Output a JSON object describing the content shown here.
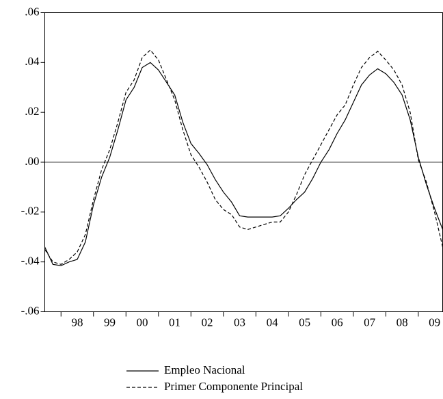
{
  "chart_data": {
    "type": "line",
    "x": [
      1997.5,
      1997.75,
      1998,
      1998.25,
      1998.5,
      1998.75,
      1999,
      1999.25,
      1999.5,
      1999.75,
      2000,
      2000.25,
      2000.5,
      2000.75,
      2001,
      2001.25,
      2001.5,
      2001.75,
      2002,
      2002.25,
      2002.5,
      2002.75,
      2003,
      2003.25,
      2003.5,
      2003.75,
      2004,
      2004.25,
      2004.5,
      2004.75,
      2005,
      2005.25,
      2005.5,
      2005.75,
      2006,
      2006.25,
      2006.5,
      2006.75,
      2007,
      2007.25,
      2007.5,
      2007.75,
      2008,
      2008.25,
      2008.5,
      2008.75,
      2009,
      2009.25,
      2009.5,
      2009.75
    ],
    "series": [
      {
        "name": "Empleo Nacional",
        "color": "#000000",
        "dash": "none",
        "values": [
          -0.034,
          -0.041,
          -0.0415,
          -0.04,
          -0.039,
          -0.032,
          -0.017,
          -0.006,
          0.002,
          0.013,
          0.025,
          0.03,
          0.038,
          0.04,
          0.037,
          0.032,
          0.027,
          0.016,
          0.0075,
          0.0035,
          -0.001,
          -0.007,
          -0.012,
          -0.016,
          -0.0215,
          -0.022,
          -0.022,
          -0.022,
          -0.022,
          -0.0215,
          -0.0185,
          -0.015,
          -0.012,
          -0.0065,
          0.0,
          0.005,
          0.0115,
          0.017,
          0.024,
          0.031,
          0.035,
          0.0375,
          0.0355,
          0.032,
          0.027,
          0.017,
          0.002,
          -0.009,
          -0.0185,
          -0.027
        ]
      },
      {
        "name": "Primer Componente Principal",
        "color": "#000000",
        "dash": "5,3",
        "values": [
          -0.035,
          -0.04,
          -0.041,
          -0.039,
          -0.036,
          -0.029,
          -0.015,
          -0.003,
          0.005,
          0.016,
          0.028,
          0.033,
          0.042,
          0.045,
          0.041,
          0.033,
          0.025,
          0.013,
          0.003,
          -0.002,
          -0.008,
          -0.015,
          -0.019,
          -0.021,
          -0.026,
          -0.027,
          -0.026,
          -0.025,
          -0.024,
          -0.024,
          -0.02,
          -0.013,
          -0.005,
          0.001,
          0.007,
          0.013,
          0.019,
          0.023,
          0.031,
          0.038,
          0.042,
          0.0445,
          0.041,
          0.037,
          0.031,
          0.02,
          0.001,
          -0.008,
          -0.02,
          -0.034
        ]
      }
    ],
    "xlim": [
      1997.5,
      2009.75
    ],
    "xticks": [
      {
        "value": 1998,
        "label": "98"
      },
      {
        "value": 1999,
        "label": "99"
      },
      {
        "value": 2000,
        "label": "00"
      },
      {
        "value": 2001,
        "label": "01"
      },
      {
        "value": 2002,
        "label": "02"
      },
      {
        "value": 2003,
        "label": "03"
      },
      {
        "value": 2004,
        "label": "04"
      },
      {
        "value": 2005,
        "label": "05"
      },
      {
        "value": 2006,
        "label": "06"
      },
      {
        "value": 2007,
        "label": "07"
      },
      {
        "value": 2008,
        "label": "08"
      },
      {
        "value": 2009,
        "label": "09"
      }
    ],
    "ylim": [
      -0.06,
      0.06
    ],
    "yticks": [
      {
        "value": 0.06,
        "label": ".06"
      },
      {
        "value": 0.04,
        "label": ".04"
      },
      {
        "value": 0.02,
        "label": ".02"
      },
      {
        "value": 0,
        "label": ".00"
      },
      {
        "value": -0.02,
        "label": "-.02"
      },
      {
        "value": -0.04,
        "label": "-.04"
      },
      {
        "value": -0.06,
        "label": "-.06"
      }
    ],
    "zero_line": true,
    "grid": false
  }
}
